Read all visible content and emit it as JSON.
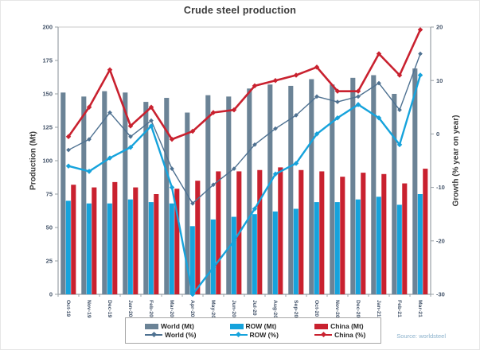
{
  "title": "Crude steel production",
  "source": "Source: worldsteel",
  "colors": {
    "world_bar": "#6b8396",
    "row_bar": "#16a3dc",
    "china_bar": "#c9212f",
    "world_line": "#4e7191",
    "row_line": "#16a3dc",
    "china_line": "#c9212f",
    "axis_text": "#44546a",
    "title_text": "#3b3b3b",
    "source_text": "#89b0cb",
    "plot_border": "#c9c9c9",
    "axis_line": "#9aa0a6"
  },
  "chart_data": {
    "type": "combo-bar-line",
    "categories": [
      "Oct-19",
      "Nov-19",
      "Dec-19",
      "Jan-20",
      "Feb-20",
      "Mar-20",
      "Apr-20",
      "May-20",
      "Jun-20",
      "Jul-20",
      "Aug-20",
      "Sep-20",
      "Oct-20",
      "Nov-20",
      "Dec-20",
      "Jan-21",
      "Feb-21",
      "Mar-21"
    ],
    "series": [
      {
        "name": "World (Mt)",
        "type": "bar",
        "axis": "left",
        "color": "#6b8396",
        "values": [
          151,
          148,
          152,
          151,
          144,
          147,
          136,
          149,
          148,
          154,
          157,
          156,
          161,
          157,
          162,
          164,
          150,
          169
        ]
      },
      {
        "name": "ROW (Mt)",
        "type": "bar",
        "axis": "left",
        "color": "#16a3dc",
        "values": [
          70,
          68,
          68,
          71,
          69,
          68,
          51,
          56,
          58,
          60,
          62,
          64,
          69,
          69,
          71,
          73,
          67,
          75
        ]
      },
      {
        "name": "China (Mt)",
        "type": "bar",
        "axis": "left",
        "color": "#c9212f",
        "values": [
          82,
          80,
          84,
          80,
          75,
          79,
          85,
          92,
          92,
          93,
          95,
          93,
          92,
          88,
          91,
          90,
          83,
          94
        ]
      },
      {
        "name": "World (%)",
        "type": "line",
        "axis": "right",
        "color": "#4e7191",
        "values": [
          -3,
          -1,
          4,
          -0.5,
          2.5,
          -6.5,
          -13,
          -9.5,
          -6.5,
          -2,
          1,
          3.5,
          7,
          6,
          7,
          9.5,
          4.5,
          15
        ]
      },
      {
        "name": "ROW (%)",
        "type": "line",
        "axis": "right",
        "color": "#16a3dc",
        "values": [
          -6,
          -7,
          -4.5,
          -2.5,
          1.5,
          -10,
          -30,
          -25,
          -20,
          -14,
          -7.5,
          -5.5,
          0,
          3,
          5.5,
          3,
          -2,
          11
        ]
      },
      {
        "name": "China (%)",
        "type": "line",
        "axis": "right",
        "color": "#c9212f",
        "values": [
          -0.5,
          5,
          12,
          1.5,
          5,
          -1,
          0.5,
          4,
          4.5,
          9,
          10,
          11,
          12.5,
          8,
          8,
          15,
          11,
          19.5
        ]
      }
    ],
    "left_axis": {
      "label": "Production (Mt)",
      "min": 0,
      "max": 200,
      "step": 25
    },
    "right_axis": {
      "label": "Growth (% year on year)",
      "min": -30,
      "max": 20,
      "step": 10
    },
    "legend_position": "bottom",
    "grid": false
  }
}
